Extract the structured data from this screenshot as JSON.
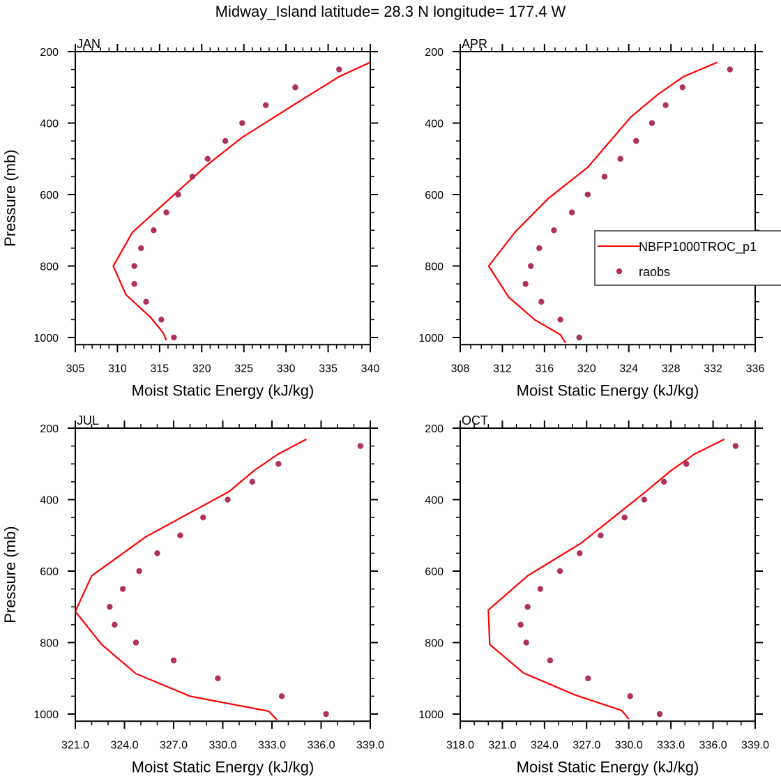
{
  "figure": {
    "title": "Midway_Island  latitude= 28.3 N longitude= 177.4 W"
  },
  "legend": {
    "placement": "right-middle of APR panel (clipped at figure edge)",
    "entries": [
      {
        "label": "NBFP1000TROC_p1",
        "marker": "line",
        "color": "#ff0000"
      },
      {
        "label": "raobs",
        "marker": "dot",
        "color": "#b03060"
      }
    ]
  },
  "colors": {
    "model_line": "#ff0000",
    "obs_dot": "#b03060",
    "axis": "#000000"
  },
  "chart_data": [
    {
      "type": "line",
      "panel": "JAN",
      "title": "JAN",
      "xlabel": "Moist Static Energy (kJ/kg)",
      "ylabel": "Pressure (mb)",
      "xlim": [
        305,
        340
      ],
      "ylim": [
        1020,
        200
      ],
      "y_inverted": true,
      "xticks": [
        305,
        310,
        315,
        320,
        325,
        330,
        335,
        340
      ],
      "xtick_labels": [
        "305",
        "310",
        "315",
        "320",
        "325",
        "330",
        "335",
        "340"
      ],
      "xminor_per_major": 5,
      "yticks": [
        200,
        400,
        600,
        800,
        1000
      ],
      "ytick_labels": [
        "200",
        "400",
        "600",
        "800",
        "1000"
      ],
      "yminor_step": 50,
      "show_ylabel": true,
      "grid": false,
      "series": [
        {
          "name": "NBFP1000TROC_p1",
          "kind": "line",
          "x": [
            340.0,
            336.3,
            331.0,
            327.5,
            324.8,
            320.6,
            311.8,
            309.5,
            311.0,
            313.9,
            315.4,
            315.8
          ],
          "y": [
            230,
            270,
            348,
            400,
            440,
            518,
            705,
            800,
            880,
            943,
            986,
            1008
          ]
        },
        {
          "name": "raobs",
          "kind": "scatter",
          "x": [
            336.3,
            331.1,
            327.6,
            324.8,
            322.8,
            320.7,
            318.9,
            317.2,
            315.8,
            314.3,
            312.8,
            312.0,
            312.0,
            313.4,
            315.2,
            316.7
          ],
          "y": [
            250,
            300,
            350,
            400,
            450,
            500,
            550,
            600,
            650,
            700,
            750,
            800,
            850,
            900,
            950,
            1000
          ]
        }
      ]
    },
    {
      "type": "line",
      "panel": "APR",
      "title": "APR",
      "xlabel": "Moist Static Energy (kJ/kg)",
      "ylabel": "",
      "xlim": [
        308,
        336
      ],
      "ylim": [
        1020,
        200
      ],
      "y_inverted": true,
      "xticks": [
        308,
        312,
        316,
        320,
        324,
        328,
        332,
        336
      ],
      "xtick_labels": [
        "308",
        "312",
        "316",
        "320",
        "324",
        "328",
        "332",
        "336"
      ],
      "xminor_per_major": 4,
      "yticks": [
        200,
        400,
        600,
        800,
        1000
      ],
      "ytick_labels": [
        "200",
        "400",
        "600",
        "800",
        "1000"
      ],
      "yminor_step": 50,
      "show_ylabel": false,
      "grid": false,
      "series": [
        {
          "name": "NBFP1000TROC_p1",
          "kind": "line",
          "x": [
            332.4,
            329.2,
            326.8,
            324.2,
            320.1,
            316.4,
            313.2,
            310.7,
            312.6,
            315.1,
            317.5,
            318.0
          ],
          "y": [
            230,
            270,
            319,
            383,
            524,
            610,
            705,
            800,
            887,
            951,
            992,
            1015
          ]
        },
        {
          "name": "raobs",
          "kind": "scatter",
          "x": [
            333.6,
            329.1,
            327.5,
            326.2,
            324.7,
            323.2,
            321.7,
            320.1,
            318.6,
            316.9,
            315.5,
            314.7,
            314.2,
            315.7,
            317.5,
            319.3
          ],
          "y": [
            250,
            300,
            350,
            400,
            450,
            500,
            550,
            600,
            650,
            700,
            750,
            800,
            850,
            900,
            950,
            1000
          ]
        }
      ]
    },
    {
      "type": "line",
      "panel": "JUL",
      "title": "JUL",
      "xlabel": "Moist Static Energy (kJ/kg)",
      "ylabel": "Pressure (mb)",
      "xlim": [
        321,
        339
      ],
      "ylim": [
        1020,
        200
      ],
      "y_inverted": true,
      "xticks": [
        321,
        324,
        327,
        330,
        333,
        336,
        339
      ],
      "xtick_labels": [
        "321.0",
        "324.0",
        "327.0",
        "330.0",
        "333.0",
        "336.0",
        "339.0"
      ],
      "xminor_per_major": 3,
      "yticks": [
        200,
        400,
        600,
        800,
        1000
      ],
      "ytick_labels": [
        "200",
        "400",
        "600",
        "800",
        "1000"
      ],
      "yminor_step": 50,
      "show_ylabel": true,
      "grid": false,
      "series": [
        {
          "name": "NBFP1000TROC_p1",
          "kind": "line",
          "x": [
            335.1,
            333.4,
            331.9,
            330.4,
            325.3,
            322.0,
            321.0,
            322.6,
            324.7,
            328.0,
            332.8,
            333.3
          ],
          "y": [
            231,
            272,
            319,
            377,
            504,
            613,
            713,
            805,
            887,
            950,
            992,
            1016
          ]
        },
        {
          "name": "raobs",
          "kind": "scatter",
          "x": [
            338.4,
            333.4,
            331.8,
            330.3,
            328.8,
            327.4,
            326.0,
            324.9,
            323.9,
            323.1,
            323.4,
            324.7,
            327.0,
            329.7,
            333.6,
            336.3
          ],
          "y": [
            250,
            300,
            350,
            400,
            450,
            500,
            550,
            600,
            650,
            700,
            750,
            800,
            850,
            900,
            950,
            1000
          ]
        }
      ]
    },
    {
      "type": "line",
      "panel": "OCT",
      "title": "OCT",
      "xlabel": "Moist Static Energy (kJ/kg)",
      "ylabel": "",
      "xlim": [
        318,
        339
      ],
      "ylim": [
        1020,
        200
      ],
      "y_inverted": true,
      "xticks": [
        318,
        321,
        324,
        327,
        330,
        333,
        336,
        339
      ],
      "xtick_labels": [
        "318.0",
        "321.0",
        "324.0",
        "327.0",
        "330.0",
        "333.0",
        "336.0",
        "339.0"
      ],
      "xminor_per_major": 3,
      "yticks": [
        200,
        400,
        600,
        800,
        1000
      ],
      "ytick_labels": [
        "200",
        "400",
        "600",
        "800",
        "1000"
      ],
      "yminor_step": 50,
      "show_ylabel": false,
      "grid": false,
      "series": [
        {
          "name": "NBFP1000TROC_p1",
          "kind": "line",
          "x": [
            336.8,
            334.7,
            333.0,
            331.1,
            326.6,
            322.8,
            320.0,
            320.1,
            322.5,
            326.2,
            329.5,
            330.0
          ],
          "y": [
            231,
            272,
            319,
            381,
            522,
            613,
            709,
            805,
            885,
            947,
            990,
            1014
          ]
        },
        {
          "name": "raobs",
          "kind": "scatter",
          "x": [
            337.6,
            334.1,
            332.5,
            331.1,
            329.7,
            328.0,
            326.5,
            325.1,
            323.7,
            322.8,
            322.3,
            322.7,
            324.4,
            327.1,
            330.1,
            332.2
          ],
          "y": [
            250,
            300,
            350,
            400,
            450,
            500,
            550,
            600,
            650,
            700,
            750,
            800,
            850,
            900,
            950,
            1000
          ]
        }
      ]
    }
  ]
}
